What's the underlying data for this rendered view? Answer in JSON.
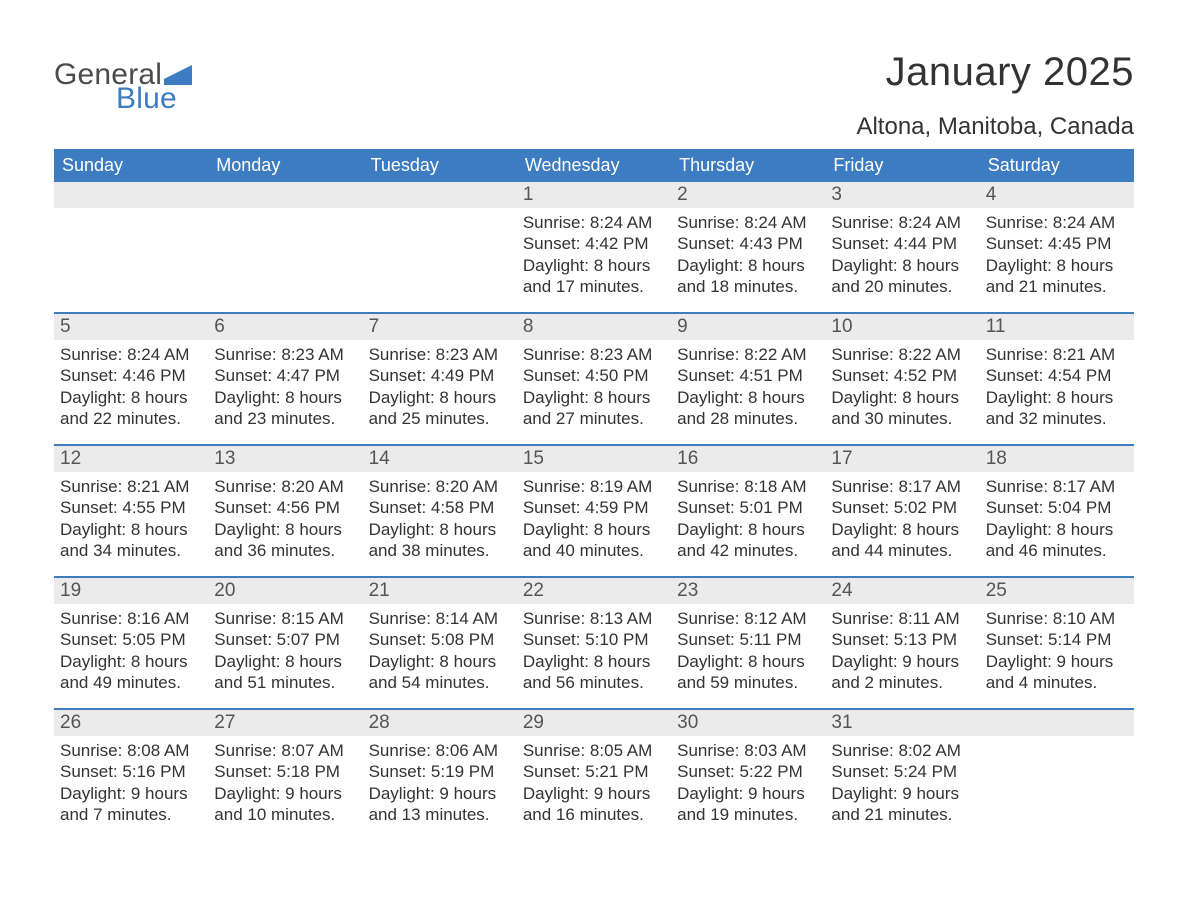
{
  "logo": {
    "word1": "General",
    "word2": "Blue",
    "flag_color": "#3d7cc0"
  },
  "title": "January 2025",
  "location": "Altona, Manitoba, Canada",
  "header_bg": "#3d7cc0",
  "header_text_color": "#ffffff",
  "daynum_bg": "#ebebeb",
  "week_border_color": "#3d7cc0",
  "weekday_labels": [
    "Sunday",
    "Monday",
    "Tuesday",
    "Wednesday",
    "Thursday",
    "Friday",
    "Saturday"
  ],
  "weeks": [
    {
      "days": [
        {
          "num": "",
          "detail": ""
        },
        {
          "num": "",
          "detail": ""
        },
        {
          "num": "",
          "detail": ""
        },
        {
          "num": "1",
          "detail": "Sunrise: 8:24 AM\nSunset: 4:42 PM\nDaylight: 8 hours and 17 minutes."
        },
        {
          "num": "2",
          "detail": "Sunrise: 8:24 AM\nSunset: 4:43 PM\nDaylight: 8 hours and 18 minutes."
        },
        {
          "num": "3",
          "detail": "Sunrise: 8:24 AM\nSunset: 4:44 PM\nDaylight: 8 hours and 20 minutes."
        },
        {
          "num": "4",
          "detail": "Sunrise: 8:24 AM\nSunset: 4:45 PM\nDaylight: 8 hours and 21 minutes."
        }
      ]
    },
    {
      "days": [
        {
          "num": "5",
          "detail": "Sunrise: 8:24 AM\nSunset: 4:46 PM\nDaylight: 8 hours and 22 minutes."
        },
        {
          "num": "6",
          "detail": "Sunrise: 8:23 AM\nSunset: 4:47 PM\nDaylight: 8 hours and 23 minutes."
        },
        {
          "num": "7",
          "detail": "Sunrise: 8:23 AM\nSunset: 4:49 PM\nDaylight: 8 hours and 25 minutes."
        },
        {
          "num": "8",
          "detail": "Sunrise: 8:23 AM\nSunset: 4:50 PM\nDaylight: 8 hours and 27 minutes."
        },
        {
          "num": "9",
          "detail": "Sunrise: 8:22 AM\nSunset: 4:51 PM\nDaylight: 8 hours and 28 minutes."
        },
        {
          "num": "10",
          "detail": "Sunrise: 8:22 AM\nSunset: 4:52 PM\nDaylight: 8 hours and 30 minutes."
        },
        {
          "num": "11",
          "detail": "Sunrise: 8:21 AM\nSunset: 4:54 PM\nDaylight: 8 hours and 32 minutes."
        }
      ]
    },
    {
      "days": [
        {
          "num": "12",
          "detail": "Sunrise: 8:21 AM\nSunset: 4:55 PM\nDaylight: 8 hours and 34 minutes."
        },
        {
          "num": "13",
          "detail": "Sunrise: 8:20 AM\nSunset: 4:56 PM\nDaylight: 8 hours and 36 minutes."
        },
        {
          "num": "14",
          "detail": "Sunrise: 8:20 AM\nSunset: 4:58 PM\nDaylight: 8 hours and 38 minutes."
        },
        {
          "num": "15",
          "detail": "Sunrise: 8:19 AM\nSunset: 4:59 PM\nDaylight: 8 hours and 40 minutes."
        },
        {
          "num": "16",
          "detail": "Sunrise: 8:18 AM\nSunset: 5:01 PM\nDaylight: 8 hours and 42 minutes."
        },
        {
          "num": "17",
          "detail": "Sunrise: 8:17 AM\nSunset: 5:02 PM\nDaylight: 8 hours and 44 minutes."
        },
        {
          "num": "18",
          "detail": "Sunrise: 8:17 AM\nSunset: 5:04 PM\nDaylight: 8 hours and 46 minutes."
        }
      ]
    },
    {
      "days": [
        {
          "num": "19",
          "detail": "Sunrise: 8:16 AM\nSunset: 5:05 PM\nDaylight: 8 hours and 49 minutes."
        },
        {
          "num": "20",
          "detail": "Sunrise: 8:15 AM\nSunset: 5:07 PM\nDaylight: 8 hours and 51 minutes."
        },
        {
          "num": "21",
          "detail": "Sunrise: 8:14 AM\nSunset: 5:08 PM\nDaylight: 8 hours and 54 minutes."
        },
        {
          "num": "22",
          "detail": "Sunrise: 8:13 AM\nSunset: 5:10 PM\nDaylight: 8 hours and 56 minutes."
        },
        {
          "num": "23",
          "detail": "Sunrise: 8:12 AM\nSunset: 5:11 PM\nDaylight: 8 hours and 59 minutes."
        },
        {
          "num": "24",
          "detail": "Sunrise: 8:11 AM\nSunset: 5:13 PM\nDaylight: 9 hours and 2 minutes."
        },
        {
          "num": "25",
          "detail": "Sunrise: 8:10 AM\nSunset: 5:14 PM\nDaylight: 9 hours and 4 minutes."
        }
      ]
    },
    {
      "days": [
        {
          "num": "26",
          "detail": "Sunrise: 8:08 AM\nSunset: 5:16 PM\nDaylight: 9 hours and 7 minutes."
        },
        {
          "num": "27",
          "detail": "Sunrise: 8:07 AM\nSunset: 5:18 PM\nDaylight: 9 hours and 10 minutes."
        },
        {
          "num": "28",
          "detail": "Sunrise: 8:06 AM\nSunset: 5:19 PM\nDaylight: 9 hours and 13 minutes."
        },
        {
          "num": "29",
          "detail": "Sunrise: 8:05 AM\nSunset: 5:21 PM\nDaylight: 9 hours and 16 minutes."
        },
        {
          "num": "30",
          "detail": "Sunrise: 8:03 AM\nSunset: 5:22 PM\nDaylight: 9 hours and 19 minutes."
        },
        {
          "num": "31",
          "detail": "Sunrise: 8:02 AM\nSunset: 5:24 PM\nDaylight: 9 hours and 21 minutes."
        },
        {
          "num": "",
          "detail": ""
        }
      ]
    }
  ]
}
